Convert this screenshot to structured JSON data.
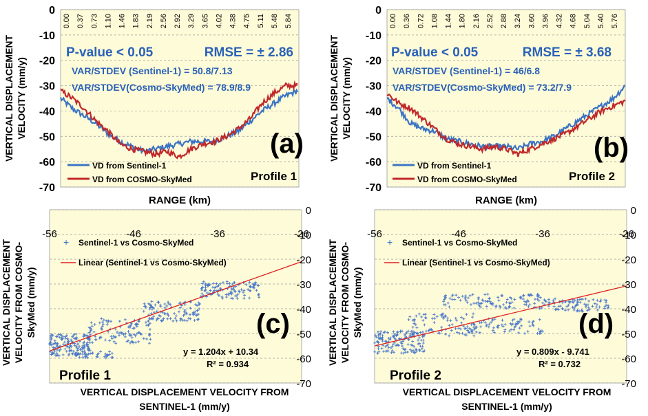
{
  "panel_a": {
    "label": "(a)",
    "profile": "Profile 1",
    "pvalue": "P-value < 0.05",
    "rmse": "RMSE = ± 2.86",
    "var1": "VAR/STDEV (Sentinel-1) = 50.8/7.13",
    "var2": "VAR/STDEV(Cosmo-SkyMed) = 78.9/8.9",
    "legend1": "VD from Sentinel-1",
    "legend2": "VD from COSMO-SkyMed",
    "ylabel1": "VERTICAL DISPLACEMENT",
    "ylabel2": "VELOCITY (mm/y)",
    "xlabel": "RANGE (km)"
  },
  "panel_b": {
    "label": "(b)",
    "profile": "Profile 2",
    "pvalue": "P-value < 0.05",
    "rmse": "RMSE = ± 3.68",
    "var1": "VAR/STDEV (Sentinel-1) = 46/6.8",
    "var2": "VAR/STDEV(Cosmo-SkyMed) = 73.2/7.9",
    "legend1": "VD from Sentinel-1",
    "legend2": "VD from COSMO-SkyMed",
    "ylabel1": "VERTICAL DISPLACEMENT",
    "ylabel2": "VELOCITY (mm/y)",
    "xlabel": "RANGE (km)"
  },
  "panel_c": {
    "label": "(c)",
    "profile": "Profile 1",
    "legend1": "Sentinel-1 vs Cosmo-SkyMed",
    "legend2": "Linear (Sentinel-1 vs Cosmo-SkyMed)",
    "equation": "y = 1.204x + 10.34",
    "r2": "R² = 0.934",
    "ylabel1": "VERTICAL DISPLACEMENT",
    "ylabel2": "VELOCITY FROM COSMO-",
    "ylabel3": "SkyMed (mm/y)",
    "xlabel1": "VERTICAL DISPLACEMENT VELOCITY FROM",
    "xlabel2": "SENTINEL-1 (mm/y)"
  },
  "panel_d": {
    "label": "(d)",
    "profile": "Profile 2",
    "legend1": "Sentinel-1 vs Cosmo-SkyMed",
    "legend2": "Linear (Sentinel-1 vs Cosmo-SkyMed)",
    "equation": "y = 0.809x - 9.741",
    "r2": "R² = 0.732",
    "ylabel1": "VERTICAL DISPLACEMENT",
    "ylabel2": "VELOCITY FROM COSMO-",
    "ylabel3": "SkyMed (mm/y)",
    "xlabel1": "VERTICAL DISPLACEMENT VELOCITY FROM",
    "xlabel2": "SENTINEL-1 (mm/y)"
  },
  "colors": {
    "sentinel": "#3b74c4",
    "cosmo": "#c0282a",
    "plot_bg": "#fefbd8",
    "annot_blue": "#2a62b8",
    "fit_line": "#e02020",
    "scatter": "#4a78c8"
  },
  "chart_data": [
    {
      "id": "a",
      "type": "line",
      "title": "Profile 1",
      "xlabel": "RANGE (km)",
      "ylabel": "VERTICAL DISPLACEMENT VELOCITY (mm/y)",
      "ylim": [
        -70,
        0
      ],
      "yticks": [
        0,
        -10,
        -20,
        -30,
        -40,
        -50,
        -60,
        -70
      ],
      "xlim": [
        0,
        6.03
      ],
      "xticks": [
        "0.00",
        "0.37",
        "0.73",
        "1.10",
        "1.46",
        "1.83",
        "2.19",
        "2.56",
        "2.92",
        "3.29",
        "3.65",
        "4.02",
        "4.38",
        "4.75",
        "5.11",
        "5.48",
        "5.84"
      ],
      "x": [
        0,
        0.3,
        0.6,
        0.9,
        1.2,
        1.5,
        1.8,
        2.1,
        2.4,
        2.7,
        3.0,
        3.3,
        3.6,
        3.9,
        4.2,
        4.5,
        4.8,
        5.1,
        5.4,
        5.7,
        6.0
      ],
      "series": [
        {
          "name": "VD from Sentinel-1",
          "values": [
            -35,
            -39,
            -42,
            -45,
            -49,
            -52,
            -54,
            -56,
            -55,
            -54,
            -53,
            -52,
            -52,
            -52,
            -50,
            -48,
            -44,
            -40,
            -37,
            -34,
            -32
          ]
        },
        {
          "name": "VD from COSMO-SkyMed",
          "values": [
            -32,
            -35,
            -39,
            -44,
            -48,
            -53,
            -55,
            -56,
            -57,
            -56,
            -58,
            -55,
            -53,
            -52,
            -50,
            -47,
            -43,
            -37,
            -33,
            -30,
            -30
          ]
        }
      ]
    },
    {
      "id": "b",
      "type": "line",
      "title": "Profile 2",
      "xlabel": "RANGE (km)",
      "ylabel": "VERTICAL DISPLACEMENT VELOCITY (mm/y)",
      "ylim": [
        -70,
        0
      ],
      "yticks": [
        0,
        -10,
        -20,
        -30,
        -40,
        -50,
        -60,
        -70
      ],
      "xlim": [
        0,
        6.0
      ],
      "xticks": [
        "0.00",
        "0.36",
        "0.72",
        "1.08",
        "1.44",
        "1.80",
        "2.16",
        "2.52",
        "2.88",
        "3.24",
        "3.60",
        "3.96",
        "4.32",
        "4.68",
        "5.04",
        "5.40",
        "5.76"
      ],
      "x": [
        0,
        0.3,
        0.6,
        0.9,
        1.2,
        1.5,
        1.8,
        2.1,
        2.4,
        2.7,
        3.0,
        3.3,
        3.6,
        3.9,
        4.2,
        4.5,
        4.8,
        5.1,
        5.4,
        5.7,
        6.0
      ],
      "series": [
        {
          "name": "VD from Sentinel-1",
          "values": [
            -35,
            -39,
            -45,
            -47,
            -48,
            -51,
            -52,
            -53,
            -54,
            -54,
            -54,
            -55,
            -53,
            -52,
            -50,
            -47,
            -44,
            -41,
            -38,
            -35,
            -30
          ]
        },
        {
          "name": "VD from COSMO-SkyMed",
          "values": [
            -33,
            -37,
            -39,
            -43,
            -47,
            -51,
            -53,
            -54,
            -55,
            -54,
            -55,
            -57,
            -55,
            -53,
            -51,
            -49,
            -46,
            -43,
            -40,
            -38,
            -36
          ]
        }
      ]
    },
    {
      "id": "c",
      "type": "scatter",
      "title": "Profile 1",
      "xlabel": "VERTICAL DISPLACEMENT VELOCITY FROM SENTINEL-1 (mm/y)",
      "ylabel": "VERTICAL DISPLACEMENT VELOCITY FROM COSMO-SkyMed (mm/y)",
      "xlim": [
        -56,
        -26
      ],
      "ylim": [
        -70,
        0
      ],
      "xticks": [
        -56,
        -46,
        -36,
        -26
      ],
      "yticks": [
        0,
        -10,
        -20,
        -30,
        -40,
        -50,
        -60,
        -70
      ],
      "fit": {
        "slope": 1.204,
        "intercept": 10.34,
        "r2": 0.934
      },
      "clusters": [
        {
          "x": [
            -56,
            -51
          ],
          "y": [
            -59,
            -50
          ],
          "n": 160
        },
        {
          "x": [
            -52,
            -44
          ],
          "y": [
            -54,
            -44
          ],
          "n": 110
        },
        {
          "x": [
            -45,
            -38
          ],
          "y": [
            -45,
            -37
          ],
          "n": 110
        },
        {
          "x": [
            -38,
            -31
          ],
          "y": [
            -36,
            -29
          ],
          "n": 120
        },
        {
          "x": [
            -53,
            -48
          ],
          "y": [
            -60,
            -57
          ],
          "n": 30
        }
      ]
    },
    {
      "id": "d",
      "type": "scatter",
      "title": "Profile 2",
      "xlabel": "VERTICAL DISPLACEMENT VELOCITY FROM SENTINEL-1 (mm/y)",
      "ylabel": "VERTICAL DISPLACEMENT VELOCITY FROM COSMO-SkyMed (mm/y)",
      "xlim": [
        -56,
        -26
      ],
      "ylim": [
        -70,
        0
      ],
      "xticks": [
        -56,
        -46,
        -36,
        -26
      ],
      "yticks": [
        0,
        -10,
        -20,
        -30,
        -40,
        -50,
        -60,
        -70
      ],
      "fit": {
        "slope": 0.809,
        "intercept": -9.741,
        "r2": 0.732
      },
      "clusters": [
        {
          "x": [
            -56,
            -50
          ],
          "y": [
            -58,
            -49
          ],
          "n": 150
        },
        {
          "x": [
            -52,
            -44
          ],
          "y": [
            -51,
            -42
          ],
          "n": 90
        },
        {
          "x": [
            -48,
            -36
          ],
          "y": [
            -40,
            -34
          ],
          "n": 110
        },
        {
          "x": [
            -44,
            -36
          ],
          "y": [
            -50,
            -44
          ],
          "n": 70
        },
        {
          "x": [
            -36,
            -28
          ],
          "y": [
            -41,
            -36
          ],
          "n": 90
        }
      ]
    }
  ]
}
